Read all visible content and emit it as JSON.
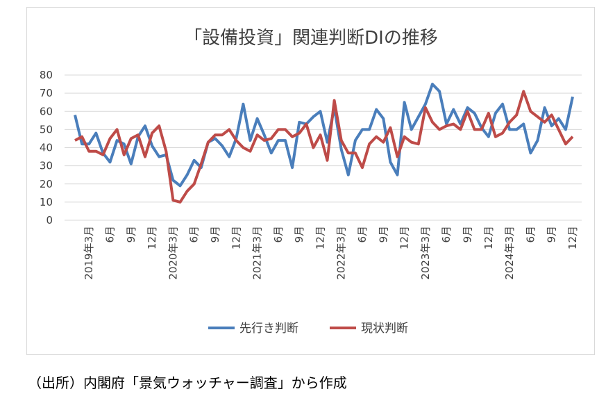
{
  "chart_data": {
    "type": "line",
    "title": "「設備投資」関連判断DIの推移",
    "source": "（出所）内閣府「景気ウォッチャー調査」から作成",
    "categories": [
      null,
      null,
      "2019年3月",
      null,
      null,
      "6月",
      null,
      null,
      "9月",
      null,
      null,
      "12月",
      null,
      null,
      "2020年3月",
      null,
      null,
      "6月",
      null,
      null,
      "9月",
      null,
      null,
      "12月",
      null,
      null,
      "2021年3月",
      null,
      null,
      "6月",
      null,
      null,
      "9月",
      null,
      null,
      "12月",
      null,
      null,
      "2022年3月",
      null,
      null,
      "6月",
      null,
      null,
      "9月",
      null,
      null,
      "12月",
      null,
      null,
      "2023年3月",
      null,
      null,
      "6月",
      null,
      null,
      "9月",
      null,
      null,
      "12月",
      null,
      null,
      "2024年3月",
      null,
      null,
      "6月",
      null,
      null,
      "9月",
      null,
      null,
      "12月"
    ],
    "series": [
      {
        "name": "先行き判断",
        "color": "#4a7ebb",
        "values": [
          58,
          42,
          42,
          48,
          37,
          32,
          44,
          42,
          31,
          46,
          52,
          41,
          35,
          36,
          22,
          19,
          25,
          33,
          29,
          43,
          45,
          41,
          35,
          45,
          64,
          44,
          56,
          47,
          37,
          44,
          44,
          29,
          54,
          53,
          57,
          60,
          43,
          62,
          39,
          25,
          44,
          50,
          50,
          61,
          56,
          32,
          25,
          65,
          50,
          57,
          64,
          75,
          71,
          53,
          61,
          53,
          62,
          59,
          51,
          46,
          59,
          64,
          50,
          50,
          53,
          37,
          44,
          62,
          52,
          56,
          50,
          68
        ]
      },
      {
        "name": "現状判断",
        "color": "#be4b48",
        "values": [
          44,
          46,
          38,
          38,
          36,
          45,
          50,
          36,
          45,
          47,
          35,
          48,
          52,
          38,
          11,
          10,
          16,
          20,
          31,
          43,
          47,
          47,
          50,
          44,
          40,
          38,
          47,
          44,
          45,
          50,
          50,
          46,
          48,
          53,
          40,
          47,
          33,
          66,
          44,
          37,
          37,
          29,
          42,
          46,
          43,
          51,
          35,
          46,
          43,
          42,
          62,
          54,
          50,
          52,
          53,
          50,
          60,
          50,
          50,
          59,
          46,
          48,
          54,
          58,
          71,
          60,
          57,
          54,
          58,
          50,
          42,
          46
        ]
      }
    ],
    "ylim": [
      0,
      80
    ],
    "yticks": [
      0,
      10,
      20,
      30,
      40,
      50,
      60,
      70,
      80
    ],
    "grid": true
  }
}
